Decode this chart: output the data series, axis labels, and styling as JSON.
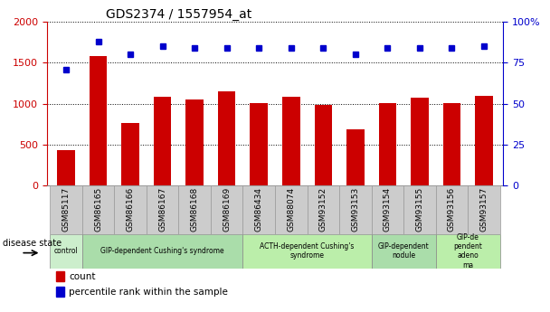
{
  "title": "GDS2374 / 1557954_at",
  "samples": [
    "GSM85117",
    "GSM86165",
    "GSM86166",
    "GSM86167",
    "GSM86168",
    "GSM86169",
    "GSM86434",
    "GSM88074",
    "GSM93152",
    "GSM93153",
    "GSM93154",
    "GSM93155",
    "GSM93156",
    "GSM93157"
  ],
  "counts": [
    430,
    1580,
    770,
    1080,
    1050,
    1150,
    1010,
    1080,
    990,
    690,
    1010,
    1070,
    1010,
    1100
  ],
  "percentiles": [
    71,
    88,
    80,
    85,
    84,
    84,
    84,
    84,
    84,
    80,
    84,
    84,
    84,
    85
  ],
  "bar_color": "#cc0000",
  "dot_color": "#0000cc",
  "ylim_left": [
    0,
    2000
  ],
  "ylim_right": [
    0,
    100
  ],
  "yticks_left": [
    0,
    500,
    1000,
    1500,
    2000
  ],
  "yticks_right": [
    0,
    25,
    50,
    75,
    100
  ],
  "ytick_right_labels": [
    "0",
    "25",
    "50",
    "75",
    "100%"
  ],
  "group_defs": [
    {
      "label": "control",
      "start": 0,
      "end": 0,
      "color": "#cceecc"
    },
    {
      "label": "GIP-dependent Cushing's syndrome",
      "start": 1,
      "end": 5,
      "color": "#aaddaa"
    },
    {
      "label": "ACTH-dependent Cushing's\nsyndrome",
      "start": 6,
      "end": 9,
      "color": "#bbeeaa"
    },
    {
      "label": "GIP-dependent\nnodule",
      "start": 10,
      "end": 11,
      "color": "#aaddaa"
    },
    {
      "label": "GIP-de\npendent\nadeno\nma",
      "start": 12,
      "end": 13,
      "color": "#bbeeaa"
    }
  ],
  "bar_width": 0.55,
  "tick_label_color_left": "#cc0000",
  "tick_label_color_right": "#0000cc",
  "sample_box_color": "#cccccc",
  "sample_box_edge": "#999999"
}
